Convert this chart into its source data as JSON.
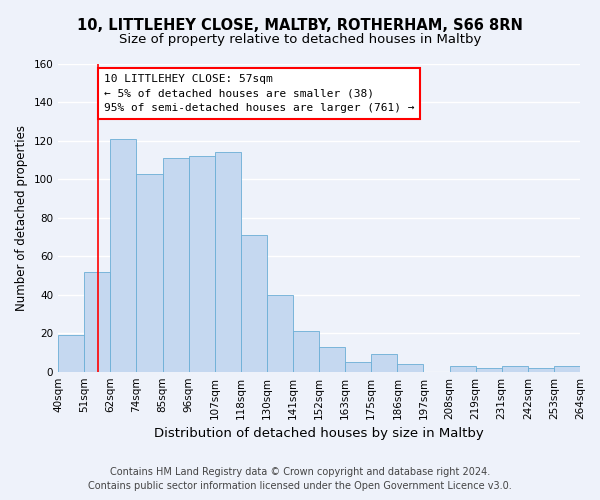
{
  "title": "10, LITTLEHEY CLOSE, MALTBY, ROTHERHAM, S66 8RN",
  "subtitle": "Size of property relative to detached houses in Maltby",
  "xlabel": "Distribution of detached houses by size in Maltby",
  "ylabel": "Number of detached properties",
  "bar_color": "#c5d8f0",
  "bar_edge_color": "#6baed6",
  "bin_labels": [
    "40sqm",
    "51sqm",
    "62sqm",
    "74sqm",
    "85sqm",
    "96sqm",
    "107sqm",
    "118sqm",
    "130sqm",
    "141sqm",
    "152sqm",
    "163sqm",
    "175sqm",
    "186sqm",
    "197sqm",
    "208sqm",
    "219sqm",
    "231sqm",
    "242sqm",
    "253sqm",
    "264sqm"
  ],
  "bar_heights": [
    19,
    52,
    121,
    103,
    111,
    112,
    114,
    71,
    40,
    21,
    13,
    5,
    9,
    4,
    0,
    3,
    2,
    3,
    2,
    3
  ],
  "ylim": [
    0,
    160
  ],
  "yticks": [
    0,
    20,
    40,
    60,
    80,
    100,
    120,
    140,
    160
  ],
  "annotation_box_text": "10 LITTLEHEY CLOSE: 57sqm\n← 5% of detached houses are smaller (38)\n95% of semi-detached houses are larger (761) →",
  "annotation_box_color": "white",
  "annotation_box_edge_color": "red",
  "annotation_line_color": "red",
  "footer_line1": "Contains HM Land Registry data © Crown copyright and database right 2024.",
  "footer_line2": "Contains public sector information licensed under the Open Government Licence v3.0.",
  "background_color": "#eef2fa",
  "grid_color": "white",
  "title_fontsize": 10.5,
  "subtitle_fontsize": 9.5,
  "xlabel_fontsize": 9.5,
  "ylabel_fontsize": 8.5,
  "tick_fontsize": 7.5,
  "annotation_fontsize": 8,
  "footer_fontsize": 7
}
